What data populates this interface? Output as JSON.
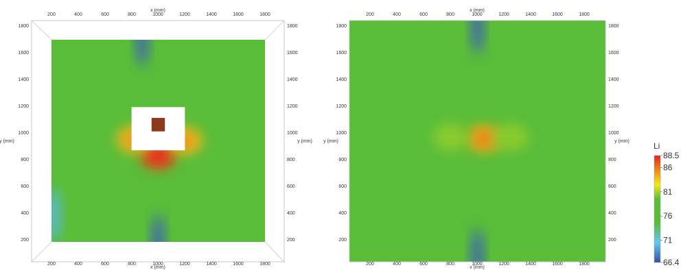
{
  "chart_data": {
    "type": "heatmap",
    "variable_title": "Li",
    "x_axis_label": "x (mm)",
    "y_axis_label": "y (mm)",
    "colorbar": {
      "range": [
        66.4,
        88.5
      ],
      "tick_labels": [
        "88.5",
        "86",
        "81",
        "76",
        "71",
        "66.4"
      ],
      "tick_values": [
        88.5,
        86,
        81,
        76,
        71,
        66.4
      ],
      "colors": [
        "#3a4fa8",
        "#5ec8f2",
        "#59bd3a",
        "#f4ea18",
        "#e52620"
      ]
    },
    "panels": [
      {
        "x_ticks": [
          200,
          400,
          600,
          800,
          1000,
          1200,
          1400,
          1600,
          1800
        ],
        "y_ticks": [
          200,
          400,
          600,
          800,
          1000,
          1200,
          1400,
          1600,
          1800
        ],
        "x_labels": [
          "200",
          "400",
          "600",
          "800",
          "1000",
          "1200",
          "1400",
          "1600",
          "1800"
        ],
        "y_labels": [
          "200",
          "400",
          "600",
          "800",
          "1000",
          "1200",
          "1400",
          "1600",
          "1800"
        ],
        "field_extent": {
          "x": [
            200,
            1800
          ],
          "y": [
            200,
            1700
          ]
        },
        "opening": {
          "x": [
            800,
            1200
          ],
          "y": [
            880,
            1200
          ]
        },
        "source_block": {
          "x": [
            950,
            1050
          ],
          "y": [
            1020,
            1120
          ],
          "color": "#8b3a1e"
        },
        "hotspots": [
          {
            "x": 1000,
            "y": 840,
            "value": 87.5
          },
          {
            "x": 820,
            "y": 960,
            "value": 84
          },
          {
            "x": 1200,
            "y": 950,
            "value": 84
          },
          {
            "x": 880,
            "y": 1700,
            "value": 67
          },
          {
            "x": 1000,
            "y": 210,
            "value": 67
          },
          {
            "x": 220,
            "y": 400,
            "value": 70
          }
        ]
      },
      {
        "x_ticks": [
          200,
          400,
          600,
          800,
          1000,
          1200,
          1400,
          1600,
          1800
        ],
        "y_ticks": [
          200,
          400,
          600,
          800,
          1000,
          1200,
          1400,
          1600,
          1800
        ],
        "x_labels": [
          "200",
          "400",
          "600",
          "800",
          "1000",
          "1200",
          "1400",
          "1600",
          "1800"
        ],
        "y_labels": [
          "200",
          "400",
          "600",
          "800",
          "1000",
          "1200",
          "1400",
          "1600",
          "1800"
        ],
        "field_extent": {
          "x": [
            50,
            1950
          ],
          "y": [
            50,
            1850
          ]
        },
        "hotspots": [
          {
            "x": 1050,
            "y": 970,
            "value": 84.5
          },
          {
            "x": 800,
            "y": 980,
            "value": 80.5
          },
          {
            "x": 1250,
            "y": 980,
            "value": 80.5
          },
          {
            "x": 1000,
            "y": 1800,
            "value": 67
          },
          {
            "x": 1000,
            "y": 100,
            "value": 67
          }
        ]
      }
    ]
  }
}
